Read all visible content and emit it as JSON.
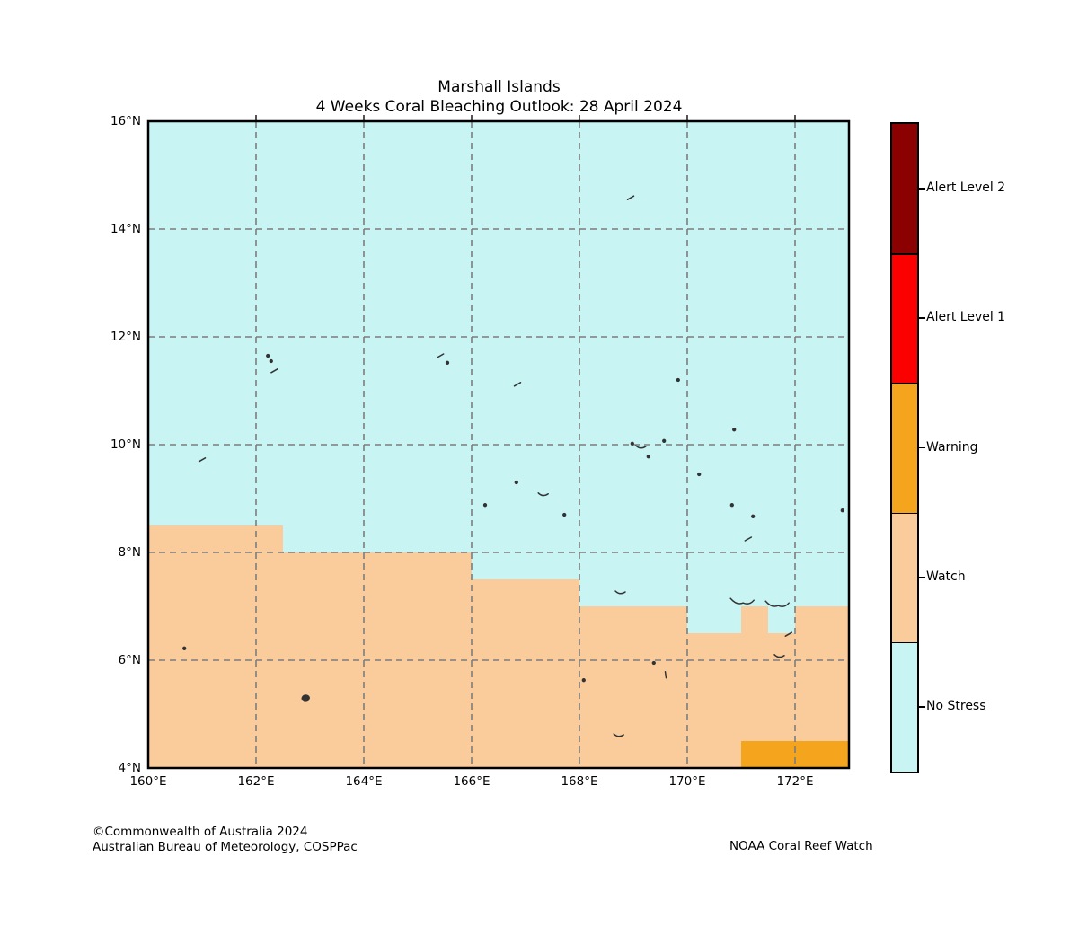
{
  "title": {
    "line1": "Marshall Islands",
    "line2": "4 Weeks Coral Bleaching Outlook: 28 April 2024"
  },
  "footer": {
    "copyright": "©Commonwealth of Australia 2024",
    "organization": "Australian Bureau of Meteorology, COSPPac",
    "credit": "NOAA Coral Reef Watch"
  },
  "colors": {
    "alert_level_2": "#8B0000",
    "alert_level_1": "#FA0000",
    "warning": "#F5A41D",
    "watch": "#FACC9C",
    "no_stress": "#C9F4F4",
    "gridline": "#7D7D7D",
    "tick": "#555555",
    "land": "#333333",
    "frame": "#000000"
  },
  "legend": {
    "entries": [
      {
        "label": "Alert Level 2",
        "color_key": "alert_level_2"
      },
      {
        "label": "Alert Level 1",
        "color_key": "alert_level_1"
      },
      {
        "label": "Warning",
        "color_key": "warning"
      },
      {
        "label": "Watch",
        "color_key": "watch"
      },
      {
        "label": "No Stress",
        "color_key": "no_stress"
      }
    ]
  },
  "map": {
    "axes": {
      "lat": {
        "min": 4,
        "max": 16,
        "unit": "°N",
        "ticks": [
          {
            "value": 16,
            "label": "16°N"
          },
          {
            "value": 14,
            "label": "14°N"
          },
          {
            "value": 12,
            "label": "12°N"
          },
          {
            "value": 10,
            "label": "10°N"
          },
          {
            "value": 8,
            "label": "8°N"
          },
          {
            "value": 6,
            "label": "6°N"
          },
          {
            "value": 4,
            "label": "4°N"
          }
        ]
      },
      "lon": {
        "min": 160,
        "max": 173,
        "unit": "°E",
        "ticks": [
          {
            "value": 160,
            "label": "160°E"
          },
          {
            "value": 162,
            "label": "162°E"
          },
          {
            "value": 164,
            "label": "164°E"
          },
          {
            "value": 166,
            "label": "166°E"
          },
          {
            "value": 168,
            "label": "168°E"
          },
          {
            "value": 170,
            "label": "170°E"
          },
          {
            "value": 172,
            "label": "172°E"
          }
        ]
      },
      "gridline_lats": [
        6,
        8,
        10,
        12,
        14
      ],
      "gridline_lons": [
        162,
        164,
        166,
        168,
        170,
        172
      ]
    },
    "islands": [
      {
        "lon": 168.95,
        "lat": 14.58,
        "type": "dash"
      },
      {
        "lon": 162.22,
        "lat": 11.65,
        "type": "dot"
      },
      {
        "lon": 162.28,
        "lat": 11.55,
        "type": "dot"
      },
      {
        "lon": 162.34,
        "lat": 11.37,
        "type": "dash"
      },
      {
        "lon": 165.42,
        "lat": 11.65,
        "type": "dash"
      },
      {
        "lon": 165.55,
        "lat": 11.52,
        "type": "dot"
      },
      {
        "lon": 166.85,
        "lat": 11.12,
        "type": "dash"
      },
      {
        "lon": 169.83,
        "lat": 11.2,
        "type": "dot"
      },
      {
        "lon": 161.0,
        "lat": 9.72,
        "type": "dash"
      },
      {
        "lon": 168.98,
        "lat": 10.02,
        "type": "dot"
      },
      {
        "lon": 169.57,
        "lat": 10.07,
        "type": "dot"
      },
      {
        "lon": 169.13,
        "lat": 9.95,
        "type": "curve"
      },
      {
        "lon": 169.28,
        "lat": 9.78,
        "type": "dot"
      },
      {
        "lon": 170.87,
        "lat": 10.28,
        "type": "dot"
      },
      {
        "lon": 170.22,
        "lat": 9.45,
        "type": "dot"
      },
      {
        "lon": 166.83,
        "lat": 9.3,
        "type": "dot"
      },
      {
        "lon": 167.32,
        "lat": 9.07,
        "type": "curve"
      },
      {
        "lon": 166.25,
        "lat": 8.88,
        "type": "dot"
      },
      {
        "lon": 167.72,
        "lat": 8.7,
        "type": "dot"
      },
      {
        "lon": 170.83,
        "lat": 8.88,
        "type": "dot"
      },
      {
        "lon": 171.22,
        "lat": 8.67,
        "type": "dot"
      },
      {
        "lon": 171.13,
        "lat": 8.25,
        "type": "dash"
      },
      {
        "lon": 172.88,
        "lat": 8.78,
        "type": "dot"
      },
      {
        "lon": 168.75,
        "lat": 7.25,
        "type": "curve"
      },
      {
        "lon": 171.02,
        "lat": 7.08,
        "type": "wcurve"
      },
      {
        "lon": 171.67,
        "lat": 7.03,
        "type": "wcurve"
      },
      {
        "lon": 171.88,
        "lat": 6.48,
        "type": "dash"
      },
      {
        "lon": 160.67,
        "lat": 6.22,
        "type": "dot"
      },
      {
        "lon": 162.92,
        "lat": 5.3,
        "type": "blob"
      },
      {
        "lon": 168.08,
        "lat": 5.63,
        "type": "dot"
      },
      {
        "lon": 169.38,
        "lat": 5.95,
        "type": "dot"
      },
      {
        "lon": 169.6,
        "lat": 5.73,
        "type": "vdash"
      },
      {
        "lon": 171.7,
        "lat": 6.07,
        "type": "curve"
      },
      {
        "lon": 168.72,
        "lat": 4.6,
        "type": "curve"
      }
    ]
  },
  "chart_data": {
    "type": "map",
    "title": "Marshall Islands",
    "subtitle": "4 Weeks Coral Bleaching Outlook: 28 April 2024",
    "x_axis": {
      "label_unit": "°E",
      "range": [
        160,
        173
      ],
      "tick_values": [
        160,
        162,
        164,
        166,
        168,
        170,
        172
      ]
    },
    "y_axis": {
      "label_unit": "°N",
      "range": [
        4,
        16
      ],
      "tick_values": [
        4,
        6,
        8,
        10,
        12,
        14,
        16
      ]
    },
    "grid": "dashed, every 2 degrees",
    "legend_position": "right",
    "legend_entries": [
      "Alert Level 2",
      "Alert Level 1",
      "Warning",
      "Watch",
      "No Stress"
    ],
    "status_regions": [
      {
        "status": "No Stress",
        "kind": "background"
      },
      {
        "status": "Watch",
        "kind": "polygon",
        "boundary_lonlat": [
          [
            160,
            8.5
          ],
          [
            162.5,
            8.5
          ],
          [
            162.5,
            8
          ],
          [
            166,
            8
          ],
          [
            166,
            7.5
          ],
          [
            168,
            7.5
          ],
          [
            168,
            7
          ],
          [
            170,
            7
          ],
          [
            170,
            6.5
          ],
          [
            171,
            6.5
          ],
          [
            171,
            7
          ],
          [
            171.5,
            7
          ],
          [
            171.5,
            6.5
          ],
          [
            172,
            6.5
          ],
          [
            172,
            7
          ],
          [
            173,
            7
          ],
          [
            173,
            4
          ],
          [
            160,
            4
          ]
        ]
      },
      {
        "status": "Warning",
        "kind": "rect",
        "lon_range": [
          171,
          173
        ],
        "lat_range": [
          4,
          4.5
        ]
      }
    ]
  }
}
